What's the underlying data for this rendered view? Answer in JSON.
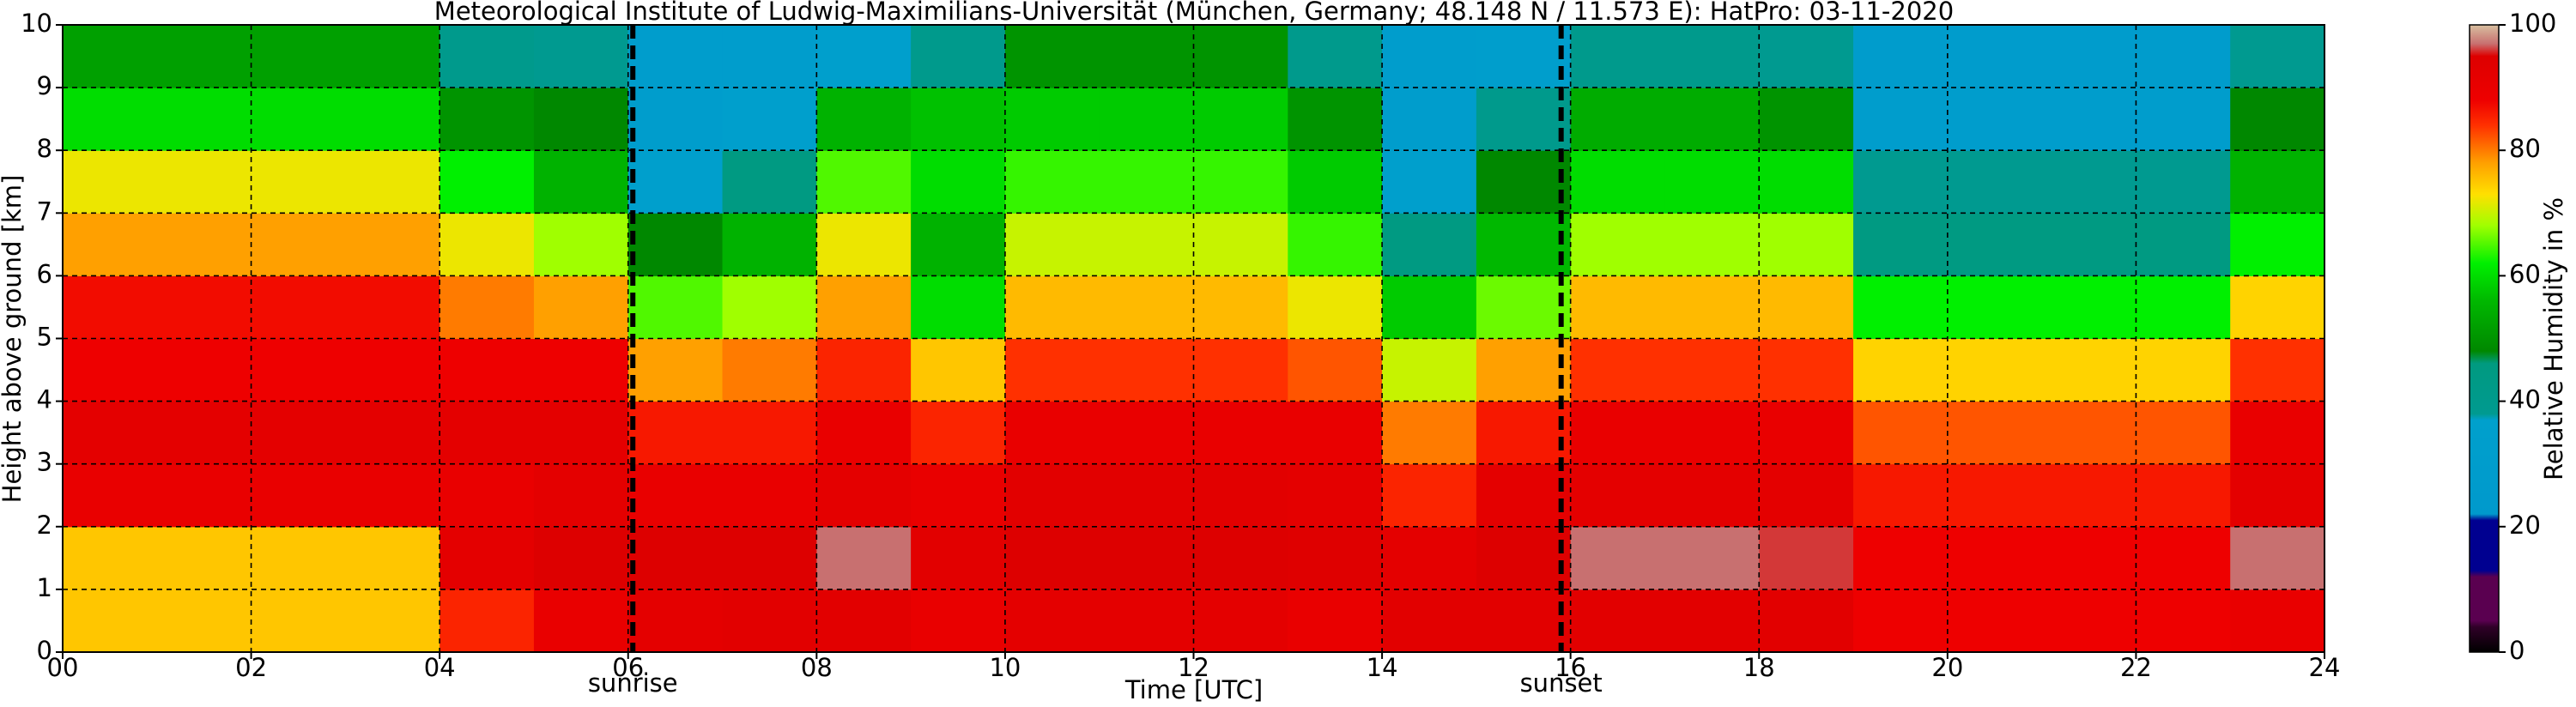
{
  "chart_data": {
    "type": "heatmap",
    "title": "Meteorological Institute of Ludwig-Maximilians-Universität (München, Germany; 48.148 N / 11.573 E):    HatPro: 03-11-2020",
    "x_label": "Time [UTC]",
    "y_label": "Height above ground [km]",
    "colorbar_label": "Relative Humidity in %",
    "xlim": [
      0,
      24
    ],
    "ylim": [
      0,
      10
    ],
    "clim": [
      0,
      100
    ],
    "xticks": [
      {
        "value": 0,
        "label": "00"
      },
      {
        "value": 2,
        "label": "02"
      },
      {
        "value": 4,
        "label": "04"
      },
      {
        "value": 6,
        "label": "06"
      },
      {
        "value": 8,
        "label": "08"
      },
      10,
      12,
      14,
      16,
      18,
      20,
      22,
      24
    ],
    "yticks": [
      0,
      1,
      2,
      3,
      4,
      5,
      6,
      7,
      8,
      9,
      10
    ],
    "cticks": [
      0,
      20,
      40,
      60,
      80,
      100
    ],
    "grid": true,
    "annotations": [
      {
        "label": "sunrise",
        "x": 6.05
      },
      {
        "label": "sunset",
        "x": 15.9
      }
    ],
    "colormap": [
      [
        0,
        "#000000"
      ],
      [
        4,
        "#300028"
      ],
      [
        5,
        "#5a0050"
      ],
      [
        12,
        "#5a0050"
      ],
      [
        13,
        "#000090"
      ],
      [
        21,
        "#000090"
      ],
      [
        22,
        "#0099cc"
      ],
      [
        37,
        "#00a0cc"
      ],
      [
        38,
        "#009a90"
      ],
      [
        46,
        "#009a80"
      ],
      [
        48,
        "#008800"
      ],
      [
        56,
        "#00b800"
      ],
      [
        62,
        "#00f000"
      ],
      [
        68,
        "#a0ff00"
      ],
      [
        73,
        "#ffe000"
      ],
      [
        78,
        "#ffa000"
      ],
      [
        84,
        "#ff3000"
      ],
      [
        88,
        "#ee0000"
      ],
      [
        95,
        "#dd0000"
      ],
      [
        97,
        "#c87070"
      ],
      [
        100,
        "#d8c0a0"
      ]
    ],
    "x_bins": [
      0,
      1,
      2,
      3,
      4,
      5,
      6,
      7,
      8,
      9,
      10,
      11,
      12,
      13,
      14,
      15,
      16,
      17,
      18,
      19,
      20,
      21,
      22,
      23,
      24
    ],
    "y_bins": [
      0,
      1,
      2,
      3,
      4,
      5,
      6,
      7,
      8,
      9,
      10
    ],
    "values": [
      [
        75,
        75,
        75,
        75,
        85,
        90,
        92,
        93,
        93,
        90,
        92,
        92,
        92,
        90,
        93,
        93,
        93,
        93,
        93,
        88,
        88,
        88,
        88,
        90
      ],
      [
        75,
        75,
        75,
        75,
        92,
        95,
        95,
        95,
        97,
        93,
        95,
        95,
        95,
        94,
        92,
        95,
        97,
        97,
        96,
        88,
        88,
        88,
        88,
        97
      ],
      [
        90,
        90,
        90,
        90,
        90,
        92,
        90,
        90,
        92,
        90,
        93,
        93,
        93,
        92,
        85,
        92,
        92,
        92,
        92,
        86,
        86,
        86,
        86,
        92
      ],
      [
        92,
        92,
        92,
        92,
        92,
        92,
        86,
        86,
        90,
        85,
        90,
        90,
        90,
        90,
        80,
        86,
        90,
        90,
        90,
        82,
        82,
        82,
        82,
        90
      ],
      [
        88,
        88,
        88,
        88,
        88,
        88,
        78,
        80,
        85,
        75,
        84,
        84,
        84,
        82,
        70,
        78,
        84,
        84,
        84,
        74,
        74,
        74,
        74,
        84
      ],
      [
        87,
        87,
        87,
        87,
        80,
        78,
        65,
        68,
        78,
        60,
        76,
        76,
        76,
        72,
        58,
        66,
        76,
        76,
        76,
        62,
        62,
        62,
        62,
        74
      ],
      [
        78,
        78,
        78,
        78,
        72,
        68,
        48,
        55,
        72,
        55,
        70,
        70,
        70,
        64,
        45,
        56,
        68,
        68,
        68,
        45,
        45,
        45,
        45,
        62
      ],
      [
        72,
        72,
        72,
        72,
        62,
        55,
        35,
        45,
        65,
        60,
        64,
        64,
        64,
        58,
        35,
        48,
        60,
        60,
        60,
        38,
        38,
        38,
        38,
        55
      ],
      [
        60,
        60,
        60,
        60,
        50,
        48,
        30,
        35,
        55,
        57,
        58,
        58,
        58,
        50,
        30,
        40,
        54,
        54,
        50,
        30,
        30,
        30,
        30,
        48
      ],
      [
        52,
        52,
        52,
        52,
        40,
        38,
        30,
        30,
        35,
        40,
        50,
        50,
        50,
        40,
        30,
        32,
        40,
        40,
        38,
        28,
        28,
        28,
        28,
        38
      ]
    ]
  }
}
